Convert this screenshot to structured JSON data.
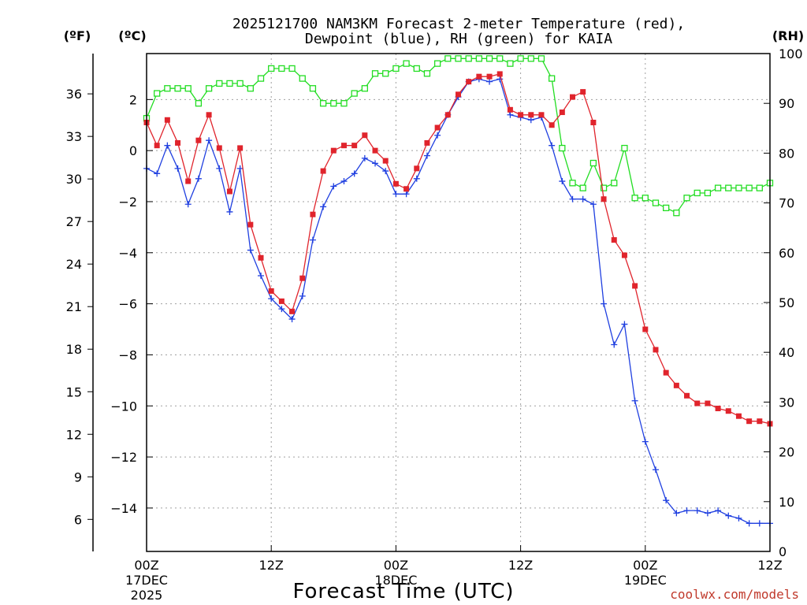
{
  "colors": {
    "temperature": "#e0242c",
    "dewpoint": "#1f3fe0",
    "rh": "#22dd22",
    "grid": "#a0a0a0",
    "credit": "#c0392b"
  },
  "chart_data": {
    "type": "line",
    "title": [
      "2025121700 NAM3KM Forecast 2-meter Temperature (red),",
      "Dewpoint (blue), RH (green) for KAIA"
    ],
    "xlabel": "Forecast Time (UTC)",
    "credit": "coolwx.com/models",
    "units": {
      "fahrenheit": "(ºF)",
      "celsius": "(ºC)",
      "rh": "(RH)"
    },
    "x_hours_range": [
      0,
      60
    ],
    "x_ticks": [
      {
        "hour": 0,
        "lines": [
          "00Z",
          "17DEC",
          "2025"
        ]
      },
      {
        "hour": 12,
        "lines": [
          "12Z"
        ]
      },
      {
        "hour": 24,
        "lines": [
          "00Z",
          "18DEC"
        ]
      },
      {
        "hour": 36,
        "lines": [
          "12Z"
        ]
      },
      {
        "hour": 48,
        "lines": [
          "00Z",
          "19DEC"
        ]
      },
      {
        "hour": 60,
        "lines": [
          "12Z"
        ]
      }
    ],
    "y_celsius_range": [
      -15.7,
      3.8
    ],
    "y_celsius_ticks": [
      "2",
      "0",
      "−2",
      "−4",
      "−6",
      "−8",
      "−10",
      "−12",
      "−14"
    ],
    "y_fahrenheit_ticks": [
      "36",
      "33",
      "30",
      "27",
      "24",
      "21",
      "18",
      "15",
      "12",
      "9",
      "6"
    ],
    "y_rh_range": [
      0,
      100
    ],
    "y_rh_ticks": [
      "100",
      "90",
      "80",
      "70",
      "60",
      "50",
      "40",
      "30",
      "20",
      "10",
      "0"
    ],
    "series": [
      {
        "name": "Temperature",
        "unit": "C",
        "marker": "square",
        "values": [
          1.1,
          0.2,
          1.2,
          0.3,
          -1.2,
          0.4,
          1.4,
          0.1,
          -1.6,
          0.1,
          -2.9,
          -4.2,
          -5.5,
          -5.9,
          -6.3,
          -5.0,
          -2.5,
          -0.8,
          0.0,
          0.2,
          0.2,
          0.6,
          0.0,
          -0.4,
          -1.3,
          -1.5,
          -0.7,
          0.3,
          0.9,
          1.4,
          2.2,
          2.7,
          2.9,
          2.9,
          3.0,
          1.6,
          1.4,
          1.4,
          1.4,
          1.0,
          1.5,
          2.1,
          2.3,
          1.1,
          -1.9,
          -3.5,
          -4.1,
          -5.3,
          -7.0,
          -7.8,
          -8.7,
          -9.2,
          -9.6,
          -9.9,
          -9.9,
          -10.1,
          -10.2,
          -10.4,
          -10.6,
          -10.6,
          -10.7
        ]
      },
      {
        "name": "Dewpoint",
        "unit": "C",
        "marker": "plus",
        "values": [
          -0.7,
          -0.9,
          0.2,
          -0.7,
          -2.1,
          -1.1,
          0.4,
          -0.7,
          -2.4,
          -0.7,
          -3.9,
          -4.9,
          -5.8,
          -6.2,
          -6.6,
          -5.7,
          -3.5,
          -2.2,
          -1.4,
          -1.2,
          -0.9,
          -0.3,
          -0.5,
          -0.8,
          -1.7,
          -1.7,
          -1.1,
          -0.2,
          0.6,
          1.4,
          2.1,
          2.7,
          2.8,
          2.7,
          2.8,
          1.4,
          1.3,
          1.2,
          1.3,
          0.2,
          -1.2,
          -1.9,
          -1.9,
          -2.1,
          -6.0,
          -7.6,
          -6.8,
          -9.8,
          -11.4,
          -12.5,
          -13.7,
          -14.2,
          -14.1,
          -14.1,
          -14.2,
          -14.1,
          -14.3,
          -14.4,
          -14.6,
          -14.6,
          -14.6
        ]
      },
      {
        "name": "RH",
        "unit": "%",
        "marker": "open-square",
        "values": [
          87,
          92,
          93,
          93,
          93,
          90,
          93,
          94,
          94,
          94,
          93,
          95,
          97,
          97,
          97,
          95,
          93,
          90,
          90,
          90,
          92,
          93,
          96,
          96,
          97,
          98,
          97,
          96,
          98,
          99,
          99,
          99,
          99,
          99,
          99,
          98,
          99,
          99,
          99,
          95,
          81,
          74,
          73,
          78,
          73,
          74,
          81,
          71,
          71,
          70,
          69,
          68,
          71,
          72,
          72,
          73,
          73,
          73,
          73,
          73,
          74
        ]
      }
    ]
  }
}
